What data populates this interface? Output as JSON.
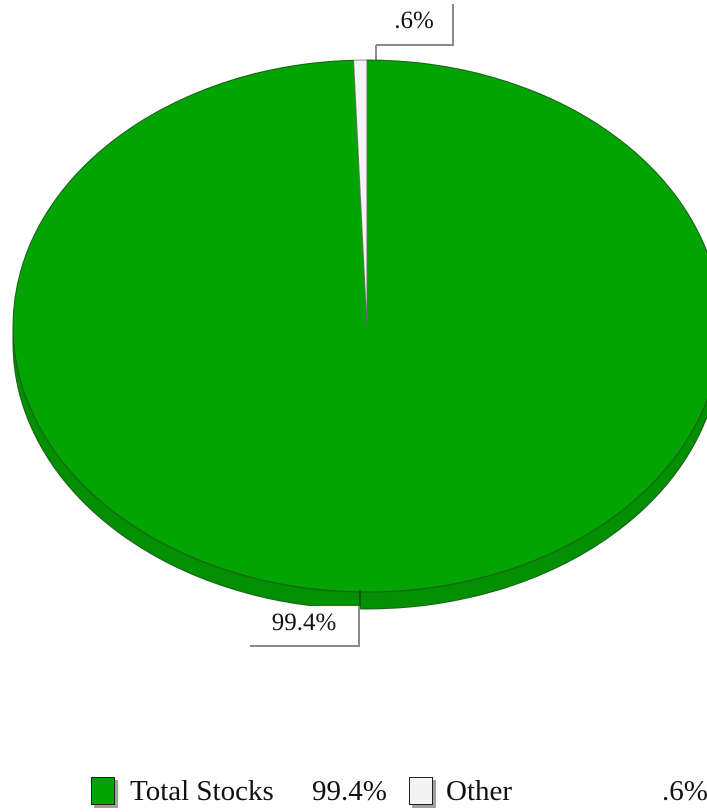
{
  "chart_data": {
    "type": "pie",
    "title": "",
    "slices": [
      {
        "name": "Total Stocks",
        "value": 99.4,
        "label": "99.4%",
        "legend_label": "Total Stocks",
        "legend_value": "99.4%",
        "color": "#02a402",
        "side_color": "#028f02"
      },
      {
        "name": "Other",
        "value": 0.6,
        "label": ".6%",
        "legend_label": "Other",
        "legend_value": ".6%",
        "color": "#f4f4f4",
        "side_color": "#d6d6d6"
      }
    ],
    "legend_position": "bottom"
  }
}
